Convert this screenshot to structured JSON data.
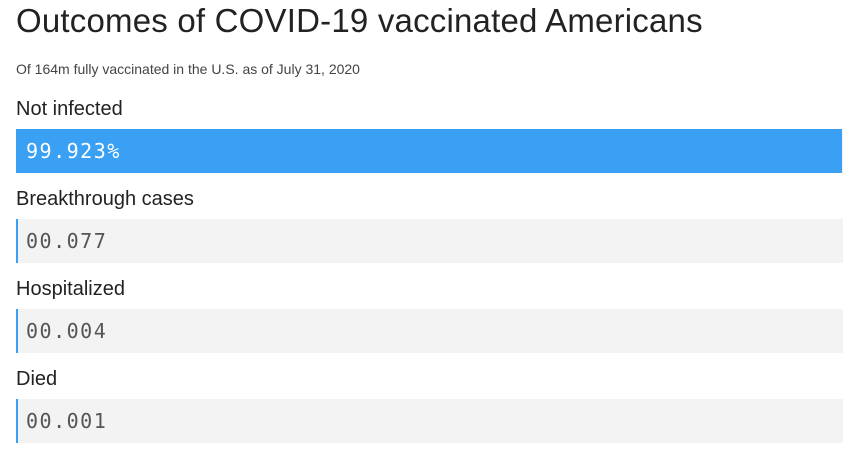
{
  "title": "Outcomes of COVID-19 vaccinated Americans",
  "subtitle": "Of 164m fully vaccinated in the U.S. as of July 31, 2020",
  "colors": {
    "bar_fill": "#39a0f3",
    "track": "#f3f3f3",
    "text": "#222222"
  },
  "chart_data": {
    "type": "bar",
    "orientation": "horizontal",
    "title": "Outcomes of COVID-19 vaccinated Americans",
    "subtitle": "Of 164m fully vaccinated in the U.S. as of July 31, 2020",
    "categories": [
      "Not infected",
      "Breakthrough cases",
      "Hospitalized",
      "Died"
    ],
    "values": [
      99.923,
      0.077,
      0.004,
      0.001
    ],
    "value_labels": [
      "99.923%",
      "00.077",
      "00.004",
      "00.001"
    ],
    "xlim": [
      0,
      100
    ],
    "grid": false
  }
}
